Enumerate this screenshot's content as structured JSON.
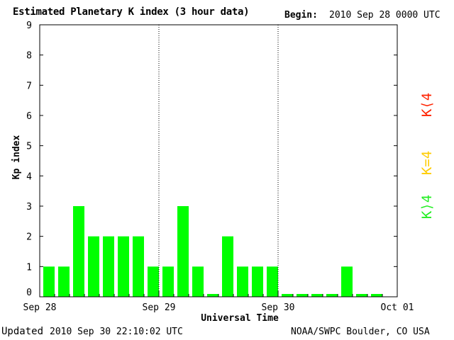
{
  "header": {
    "title": "Estimated Planetary K index (3 hour data)",
    "begin_label": "Begin:",
    "begin_value": "2010 Sep 28 0000 UTC"
  },
  "footer": {
    "updated_label": "Updated",
    "updated_value": "2010 Sep 30 22:10:02 UTC",
    "credit": "NOAA/SWPC Boulder, CO USA"
  },
  "legend": [
    {
      "label": "K⟨4",
      "color": "#ff2200"
    },
    {
      "label": "K=4",
      "color": "#ffcc00"
    },
    {
      "label": "K⟩4",
      "color": "#22ee22"
    }
  ],
  "colors": {
    "bar": "#00ff00",
    "axis": "#000000"
  },
  "chart_data": {
    "type": "bar",
    "title": "Estimated Planetary K index (3 hour data)",
    "xlabel": "Universal Time",
    "ylabel": "Kp index",
    "ylim": [
      0,
      9
    ],
    "yticks": [
      "0",
      "1",
      "2",
      "3",
      "4",
      "5",
      "6",
      "7",
      "8",
      "9"
    ],
    "xticks": [
      "Sep 28",
      "Sep 29",
      "Sep 30",
      "Oct 01"
    ],
    "day_separators": [
      "Sep 29",
      "Sep 30"
    ],
    "interval_hours": 3,
    "values": [
      1,
      1,
      3,
      2,
      2,
      2,
      2,
      1,
      1,
      3,
      1,
      0,
      2,
      1,
      1,
      1,
      0,
      0,
      0,
      0,
      1,
      0,
      0
    ],
    "grid": false
  }
}
